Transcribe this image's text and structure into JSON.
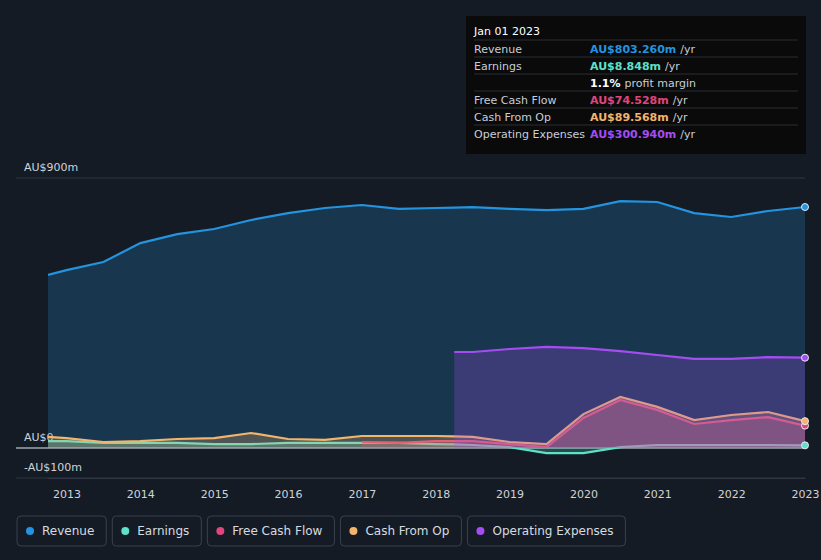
{
  "chart_data": {
    "type": "area",
    "x": [
      2012.75,
      2013,
      2013.5,
      2014,
      2014.5,
      2015,
      2015.5,
      2016,
      2016.5,
      2017,
      2017.5,
      2018,
      2018.25,
      2018.5,
      2019,
      2019.5,
      2020,
      2020.5,
      2021,
      2021.5,
      2022,
      2022.5,
      2023
    ],
    "xlim": [
      2012.75,
      2023
    ],
    "xticks": [
      2013,
      2014,
      2015,
      2016,
      2017,
      2018,
      2019,
      2020,
      2021,
      2022,
      2023
    ],
    "ylim": [
      -100,
      900
    ],
    "yticks": [
      {
        "value": -100,
        "label": "-AU$100m"
      },
      {
        "value": 0,
        "label": "AU$0"
      },
      {
        "value": 900,
        "label": "AU$900m"
      }
    ],
    "grid": true,
    "legend": "bottom",
    "series": [
      {
        "name": "Revenue",
        "color": "#2394df",
        "values": [
          577,
          593,
          620,
          683,
          713,
          730,
          760,
          783,
          800,
          810,
          797,
          800,
          801,
          803,
          797,
          793,
          797,
          823,
          820,
          783,
          770,
          790,
          803.26
        ]
      },
      {
        "name": "Earnings",
        "color": "#5fe0c9",
        "values": [
          23,
          23,
          17,
          17,
          17,
          13,
          13,
          17,
          17,
          17,
          17,
          13,
          12,
          10,
          3,
          -17,
          -17,
          3,
          10,
          10,
          10,
          10,
          8.848
        ]
      },
      {
        "name": "Free Cash Flow",
        "color": "#e0457b",
        "values": [
          null,
          null,
          null,
          null,
          null,
          null,
          null,
          null,
          null,
          20,
          17,
          23,
          23,
          23,
          13,
          3,
          100,
          160,
          127,
          80,
          93,
          103,
          74.528
        ]
      },
      {
        "name": "Cash From Op",
        "color": "#f2b56b",
        "values": [
          37,
          33,
          20,
          23,
          30,
          33,
          50,
          30,
          27,
          40,
          40,
          40,
          39,
          37,
          20,
          13,
          113,
          170,
          137,
          93,
          110,
          120,
          89.568
        ]
      },
      {
        "name": "Operating Expenses",
        "color": "#a54df2",
        "values": [
          null,
          null,
          null,
          null,
          null,
          null,
          null,
          null,
          null,
          null,
          null,
          null,
          320,
          320,
          330,
          337,
          333,
          323,
          310,
          297,
          297,
          303,
          300.94
        ]
      }
    ],
    "tooltip": {
      "title": "Jan 01 2023",
      "rows": [
        {
          "name": "Revenue",
          "text": "AU$803.260m",
          "unit": "/yr"
        },
        {
          "name": "Earnings",
          "text": "AU$8.848m",
          "unit": "/yr"
        },
        {
          "text": "1.1%",
          "unit": "profit margin"
        },
        {
          "name": "Free Cash Flow",
          "text": "AU$74.528m",
          "unit": "/yr"
        },
        {
          "name": "Cash From Op",
          "text": "AU$89.568m",
          "unit": "/yr"
        },
        {
          "name": "Operating Expenses",
          "text": "AU$300.940m",
          "unit": "/yr"
        }
      ]
    }
  }
}
